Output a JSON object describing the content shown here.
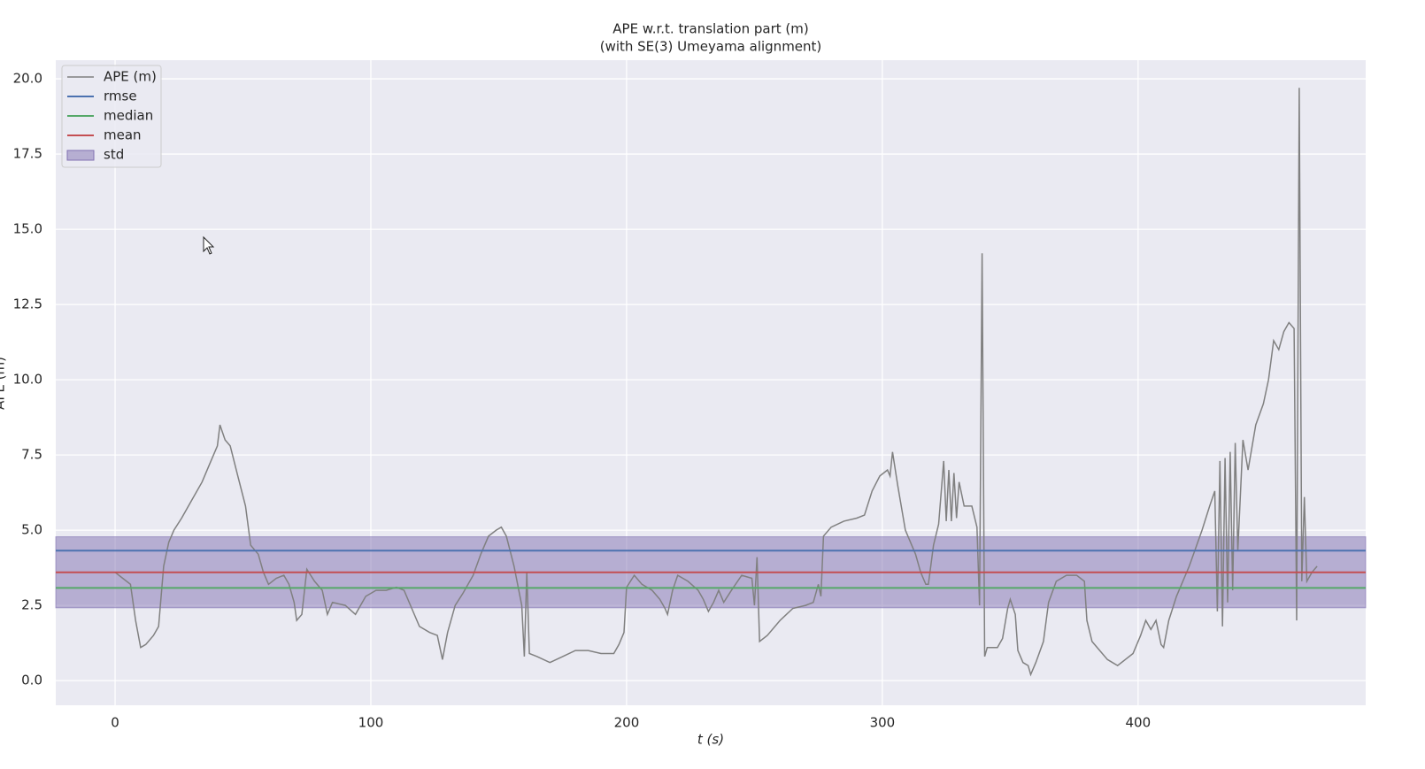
{
  "chart_data": {
    "type": "line",
    "title": "APE w.r.t. translation part (m)",
    "subtitle": "(with SE(3) Umeyama alignment)",
    "xlabel": "t (s)",
    "ylabel": "APE (m)",
    "xlim": [
      -23.2,
      489
    ],
    "ylim": [
      -0.82,
      20.62
    ],
    "xticks": [
      0,
      100,
      200,
      300,
      400
    ],
    "yticks": [
      {
        "value": 0,
        "label": "0.0"
      },
      2.5,
      {
        "value": 5,
        "label": "5.0"
      },
      7.5,
      {
        "value": 10,
        "label": "10.0"
      },
      12.5,
      {
        "value": 15,
        "label": "15.0"
      },
      17.5,
      {
        "value": 20,
        "label": "20.0"
      }
    ],
    "grid": true,
    "legend": "upper left",
    "x": [
      0,
      3,
      6,
      8,
      10,
      12,
      15,
      17,
      19,
      21,
      23,
      26,
      30,
      34,
      37,
      40,
      41,
      43,
      45,
      48,
      51,
      53,
      56,
      58,
      60,
      63,
      66,
      68,
      70,
      71,
      73,
      75,
      78,
      81,
      83,
      85,
      90,
      94,
      98,
      102,
      106,
      110,
      113,
      116,
      119,
      123,
      126,
      128,
      130,
      133,
      136,
      140,
      143,
      146,
      149,
      151,
      153,
      156,
      159,
      160,
      161,
      162,
      165,
      170,
      175,
      180,
      185,
      190,
      195,
      197,
      199,
      200,
      203,
      206,
      210,
      213,
      215,
      216,
      218,
      220,
      224,
      228,
      230,
      232,
      234,
      236,
      238,
      241,
      245,
      249,
      250,
      251,
      252,
      255,
      260,
      265,
      270,
      273,
      275,
      276,
      277,
      280,
      285,
      290,
      293,
      296,
      299,
      302,
      303,
      304,
      306,
      309,
      313,
      315,
      317,
      318,
      320,
      322,
      324,
      325,
      326,
      327,
      328,
      329,
      330,
      332,
      335,
      337,
      338,
      339,
      340,
      341,
      345,
      347,
      349,
      350,
      352,
      353,
      355,
      357,
      358,
      360,
      363,
      365,
      368,
      372,
      376,
      379,
      380,
      382,
      385,
      388,
      390,
      392,
      395,
      398,
      401,
      403,
      405,
      407,
      409,
      410,
      412,
      415,
      420,
      425,
      428,
      430,
      431,
      432,
      433,
      434,
      435,
      436,
      437,
      438,
      439,
      441,
      443,
      446,
      449,
      451,
      453,
      455,
      457,
      459,
      461,
      462,
      463,
      464,
      465,
      466,
      468,
      470
    ],
    "series": [
      {
        "name": "APE (m)",
        "color": "#808080",
        "values": [
          3.6,
          3.4,
          3.2,
          2.0,
          1.1,
          1.2,
          1.5,
          1.8,
          3.8,
          4.6,
          5.0,
          5.4,
          6.0,
          6.6,
          7.2,
          7.8,
          8.5,
          8.0,
          7.8,
          6.8,
          5.8,
          4.5,
          4.2,
          3.6,
          3.2,
          3.4,
          3.5,
          3.2,
          2.6,
          2.0,
          2.2,
          3.7,
          3.3,
          3.0,
          2.2,
          2.6,
          2.5,
          2.2,
          2.8,
          3.0,
          3.0,
          3.1,
          3.0,
          2.4,
          1.8,
          1.6,
          1.5,
          0.7,
          1.6,
          2.5,
          2.9,
          3.5,
          4.2,
          4.8,
          5.0,
          5.1,
          4.8,
          3.8,
          2.5,
          0.8,
          3.6,
          0.9,
          0.8,
          0.6,
          0.8,
          1.0,
          1.0,
          0.9,
          0.9,
          1.2,
          1.6,
          3.1,
          3.5,
          3.2,
          3.0,
          2.7,
          2.4,
          2.2,
          3.0,
          3.5,
          3.3,
          3.0,
          2.7,
          2.3,
          2.6,
          3.0,
          2.6,
          3.0,
          3.5,
          3.4,
          2.5,
          4.1,
          1.3,
          1.5,
          2.0,
          2.4,
          2.5,
          2.6,
          3.2,
          2.8,
          4.8,
          5.1,
          5.3,
          5.4,
          5.5,
          6.3,
          6.8,
          7.0,
          6.8,
          7.6,
          6.5,
          5.0,
          4.2,
          3.6,
          3.2,
          3.2,
          4.5,
          5.2,
          7.3,
          5.3,
          7.0,
          5.3,
          6.9,
          5.4,
          6.6,
          5.8,
          5.8,
          5.1,
          2.5,
          14.2,
          0.8,
          1.1,
          1.1,
          1.4,
          2.4,
          2.7,
          2.2,
          1.0,
          0.6,
          0.5,
          0.2,
          0.6,
          1.3,
          2.6,
          3.3,
          3.5,
          3.5,
          3.3,
          2.0,
          1.3,
          1.0,
          0.7,
          0.6,
          0.5,
          0.7,
          0.9,
          1.5,
          2.0,
          1.7,
          2.0,
          1.2,
          1.1,
          2.0,
          2.8,
          3.8,
          5.0,
          5.8,
          6.3,
          2.3,
          7.3,
          1.8,
          7.4,
          2.6,
          7.6,
          3.0,
          7.9,
          4.3,
          8.0,
          7.0,
          8.5,
          9.2,
          10.0,
          11.3,
          11.0,
          11.6,
          11.9,
          11.7,
          2.0,
          19.7,
          3.3,
          6.1,
          3.3,
          3.6,
          3.8
        ]
      }
    ],
    "lines": [
      {
        "name": "rmse",
        "color": "#4c72b0",
        "value": 4.32
      },
      {
        "name": "median",
        "color": "#55a868",
        "value": 3.08
      },
      {
        "name": "mean",
        "color": "#c44e52",
        "value": 3.6
      }
    ],
    "std": {
      "name": "std",
      "color": "#8172b2",
      "value": 1.18
    }
  }
}
